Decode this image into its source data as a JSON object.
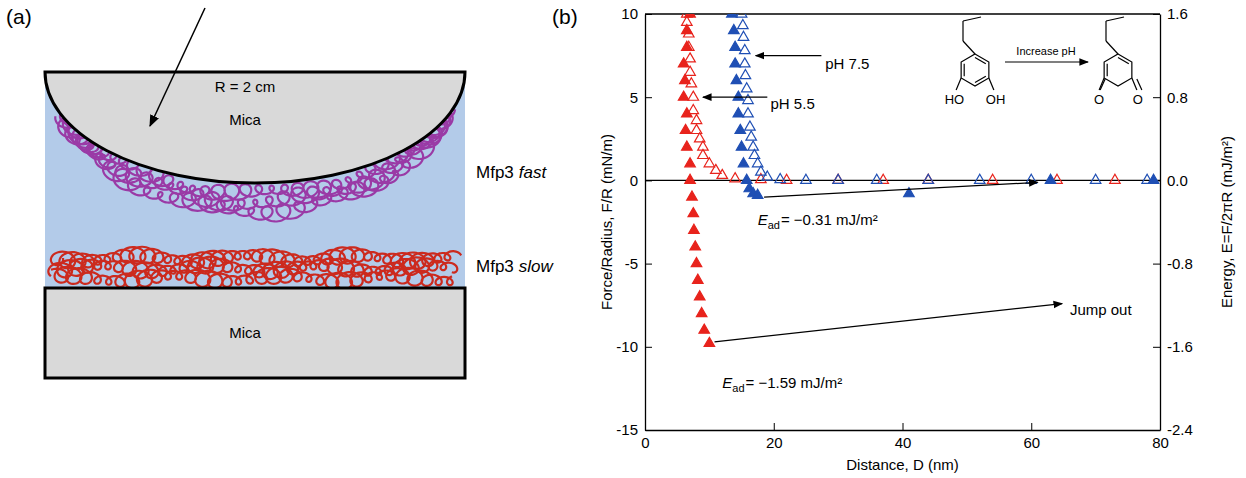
{
  "chart_data": {
    "type": "scatter",
    "panel_label": "(b)",
    "x_label": "Distance, D (nm)",
    "y_label": "Force/Radius, F/R (mN/m)",
    "y2_label": "Energy, E=F/2πR (mJ/m²)",
    "xlim": [
      0,
      80
    ],
    "xticks": [
      0,
      20,
      40,
      60,
      80
    ],
    "ylim": [
      -15,
      10
    ],
    "yticks": [
      -15,
      -10,
      -5,
      0,
      5,
      10
    ],
    "y2lim": [
      -2.4,
      1.6
    ],
    "y2ticks": [
      -2.4,
      -1.6,
      -0.8,
      {
        "value": 0,
        "label": "0.0"
      },
      0.8,
      1.6
    ],
    "grid": false,
    "series": [
      {
        "color": "#e8231c",
        "marker": "triangle-open",
        "x": [
          73,
          64,
          54,
          44,
          37,
          30,
          22,
          18,
          14,
          12,
          11,
          10,
          9,
          9,
          8.5,
          8,
          8,
          7.5,
          7.5,
          7.2,
          7,
          7,
          6.8,
          6.8,
          6.5,
          6.5
        ],
        "values": [
          0,
          0,
          0,
          0,
          0,
          0,
          0,
          0.05,
          0.1,
          0.3,
          0.6,
          1,
          1.5,
          2,
          2.5,
          3,
          3.6,
          4.2,
          5,
          5.8,
          6.5,
          7.3,
          8,
          8.8,
          9.5,
          10
        ]
      },
      {
        "color": "#e8231c",
        "marker": "triangle",
        "x": [
          7,
          6.5,
          6.5,
          6,
          6.2,
          6,
          6.5,
          6.3,
          6.5,
          7,
          7,
          7.3,
          7.5,
          7.6,
          7.8,
          8,
          8.2,
          8.5,
          8.8,
          9.2,
          10
        ],
        "values": [
          10,
          9,
          8,
          7,
          6,
          5,
          4,
          3,
          2,
          1,
          0,
          -1,
          -2,
          -3,
          -4,
          -5,
          -6,
          -7,
          -8,
          -9,
          -9.8
        ]
      },
      {
        "color": "#1f4fb4",
        "marker": "triangle-open",
        "x": [
          78,
          70,
          60,
          52,
          44,
          36,
          30,
          25,
          21,
          19,
          18,
          17.5,
          17,
          16.8,
          16.5,
          16.3,
          16,
          16,
          15.8,
          15.6,
          15.5,
          15.5,
          15.3,
          15.2,
          15
        ],
        "values": [
          0,
          0,
          0,
          0,
          0,
          0,
          0,
          0,
          0.05,
          0.2,
          0.5,
          1,
          1.5,
          2,
          2.6,
          3.2,
          4,
          4.8,
          5.5,
          6.3,
          7,
          7.8,
          8.6,
          9.3,
          10
        ]
      },
      {
        "color": "#1f4fb4",
        "marker": "triangle",
        "x": [
          13.5,
          13.8,
          14,
          14,
          14.2,
          14.5,
          14.5,
          14.8,
          15,
          15.3,
          15.8,
          16.2,
          16.8,
          17.5,
          41,
          63,
          79
        ],
        "values": [
          10,
          9,
          8,
          7,
          6,
          5,
          4,
          3,
          2,
          1,
          0,
          -0.5,
          -0.8,
          -0.9,
          -0.8,
          0,
          0
        ]
      }
    ],
    "annotations": [
      {
        "text": "pH 7.5"
      },
      {
        "text": "pH 5.5"
      },
      {
        "symbol": "E",
        "subscript": "ad",
        "text": "= −0.31 mJ/m²"
      },
      {
        "text": "Jump out"
      },
      {
        "symbol": "E",
        "subscript": "ad",
        "text": "= −1.59 mJ/m²"
      }
    ],
    "inset": {
      "reactant_groups": [
        "HO",
        "OH"
      ],
      "product_groups": [
        "O",
        "O"
      ],
      "arrow_label": "Increase pH"
    }
  },
  "diagram": {
    "panel_label": "(a)",
    "radius_label": "R = 2 cm",
    "top_surface": "Mica",
    "bottom_surface": "Mica",
    "layers": [
      {
        "name": "Mfp3",
        "state": "fast"
      },
      {
        "name": "Mfp3",
        "state": "slow"
      }
    ]
  }
}
